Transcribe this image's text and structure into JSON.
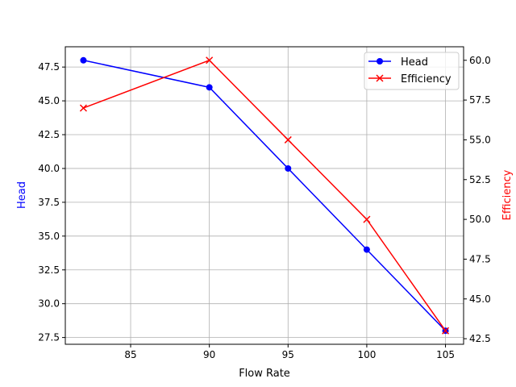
{
  "chart_data": {
    "type": "line",
    "title": "",
    "xlabel": "Flow Rate",
    "xlim": [
      80.85,
      106.15
    ],
    "xticks": [
      85,
      90,
      95,
      100,
      105
    ],
    "grid": true,
    "legend": "upper-right",
    "axes": {
      "left": {
        "label": "Head",
        "color": "#0000ff",
        "ylim": [
          27,
          49
        ],
        "ticks": [
          "27.5",
          "30.0",
          "32.5",
          "35.0",
          "37.5",
          "40.0",
          "42.5",
          "45.0",
          "47.5"
        ]
      },
      "right": {
        "label": "Efficiency",
        "color": "#ff0000",
        "ylim": [
          42.15,
          60.85
        ],
        "ticks": [
          "42.5",
          "45.0",
          "47.5",
          "50.0",
          "52.5",
          "55.0",
          "57.5",
          "60.0"
        ]
      }
    },
    "x": [
      82,
      90,
      95,
      100,
      105
    ],
    "series": [
      {
        "name": "Head",
        "axis": "left",
        "color": "#0000ff",
        "marker": "circle",
        "values": [
          48,
          46,
          40,
          34,
          28
        ]
      },
      {
        "name": "Efficiency",
        "axis": "right",
        "color": "#ff0000",
        "marker": "x",
        "values": [
          57,
          60,
          55,
          50,
          43
        ]
      }
    ]
  }
}
